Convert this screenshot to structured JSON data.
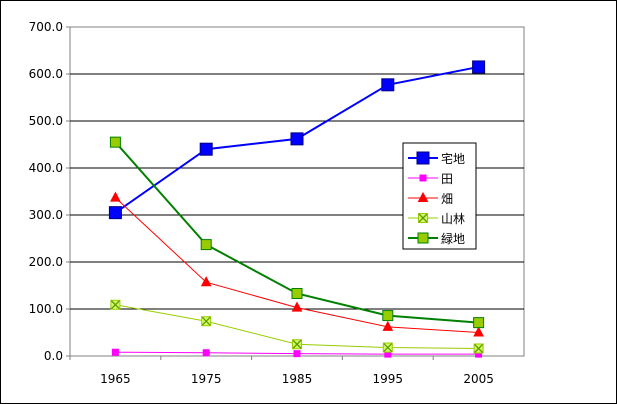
{
  "chart_data": {
    "type": "line",
    "categories": [
      "1965",
      "1975",
      "1985",
      "1995",
      "2005"
    ],
    "ylim": [
      0,
      700
    ],
    "yticks": [
      "0.0",
      "100.0",
      "200.0",
      "300.0",
      "400.0",
      "500.0",
      "600.0",
      "700.0"
    ],
    "grid": true,
    "legend_position": "right",
    "series": [
      {
        "name": "宅地",
        "color": "#0000ff",
        "marker": "square",
        "values": [
          305,
          440,
          462,
          577,
          615
        ]
      },
      {
        "name": "田",
        "color": "#ff00ff",
        "marker": "square-small",
        "values": [
          8,
          7,
          5,
          4,
          4
        ]
      },
      {
        "name": "畑",
        "color": "#ff0000",
        "marker": "triangle",
        "values": [
          337,
          157,
          103,
          62,
          50
        ]
      },
      {
        "name": "山林",
        "color": "#99cc00",
        "marker": "x-square",
        "values": [
          109,
          74,
          25,
          18,
          16
        ]
      },
      {
        "name": "緑地",
        "color": "#008000",
        "marker": "square-lime",
        "values": [
          455,
          237,
          133,
          86,
          71
        ]
      }
    ]
  }
}
